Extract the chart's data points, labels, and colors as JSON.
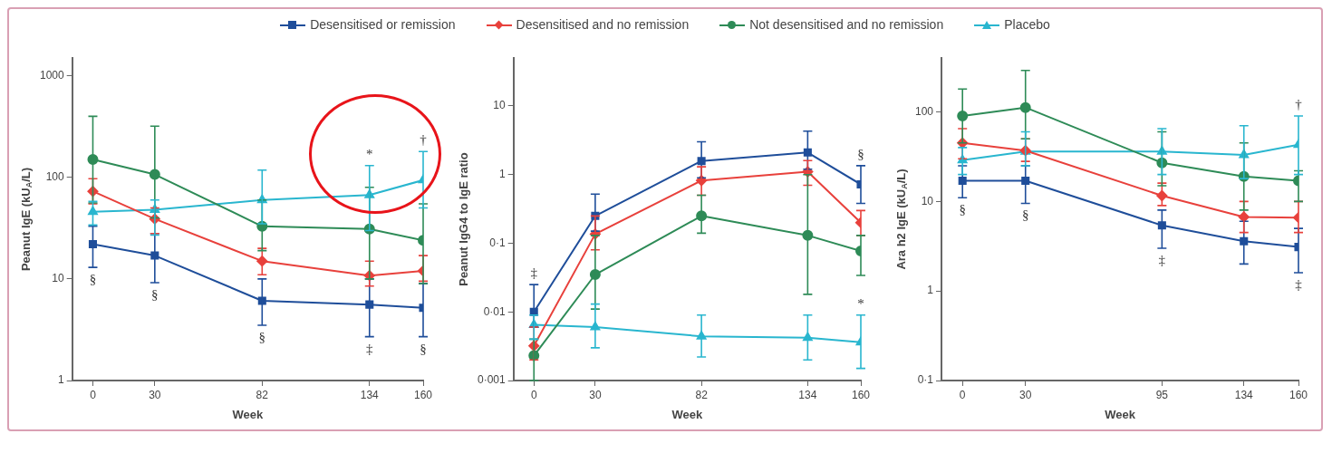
{
  "chart_data": [
    {
      "type": "line",
      "xlabel": "Week",
      "ylabel": "Peanut IgE (kU$_{A}$/L)",
      "x": [
        0,
        30,
        82,
        134,
        160
      ],
      "xlim": [
        -10,
        160
      ],
      "xticks": [
        0,
        30,
        82,
        134,
        160
      ],
      "log": "y",
      "ylim": [
        1,
        1500
      ],
      "yticks": [
        1,
        10,
        100,
        1000
      ],
      "grid": false,
      "legend": "top",
      "series": [
        {
          "name": "Desensitised or remission",
          "color": "#1f4e9a",
          "marker": "square",
          "values": [
            22,
            17,
            6.1,
            5.6,
            5.2
          ],
          "errors": [
            [
              13,
              33
            ],
            [
              9.2,
              28
            ],
            [
              3.5,
              10
            ],
            [
              2.7,
              10
            ],
            [
              2.7,
              9
            ]
          ]
        },
        {
          "name": "Desensitised and no remission",
          "color": "#e8413c",
          "marker": "diamond",
          "values": [
            73,
            39,
            15,
            10.8,
            12
          ],
          "errors": [
            [
              55,
              97
            ],
            [
              28,
              50
            ],
            [
              11,
              20
            ],
            [
              8.5,
              15
            ],
            [
              9.5,
              17
            ]
          ]
        },
        {
          "name": "Not desensitised and no remission",
          "color": "#2e8b57",
          "marker": "circle",
          "values": [
            150,
            107,
            33,
            31,
            24
          ],
          "errors": [
            [
              56,
              400
            ],
            [
              40,
              320
            ],
            [
              19,
              60
            ],
            [
              10,
              80
            ],
            [
              9,
              55
            ]
          ]
        },
        {
          "name": "Placebo",
          "color": "#29b6cf",
          "marker": "triangle",
          "values": [
            46,
            48,
            60,
            67,
            94
          ],
          "errors": [
            [
              34,
              58
            ],
            [
              27,
              60
            ],
            [
              35,
              118
            ],
            [
              30,
              131
            ],
            [
              50,
              180
            ]
          ]
        }
      ],
      "annotations": [
        {
          "text": "§",
          "x": 0,
          "y": 22
        },
        {
          "text": "§",
          "x": 30,
          "y": 17
        },
        {
          "text": "§",
          "x": 82,
          "y": 6.1
        },
        {
          "text": "‡",
          "x": 134,
          "y": 5.6
        },
        {
          "text": "§",
          "x": 160,
          "y": 5.2
        },
        {
          "text": "*",
          "x": 134,
          "y": 67
        },
        {
          "text": "†",
          "x": 160,
          "y": 94
        }
      ]
    },
    {
      "type": "line",
      "xlabel": "Week",
      "ylabel": "Peanut IgG4 to IgE ratio",
      "x": [
        0,
        30,
        82,
        134,
        160
      ],
      "xlim": [
        -10,
        160
      ],
      "xticks": [
        0,
        30,
        82,
        134,
        160
      ],
      "log": "y",
      "ylim": [
        0.001,
        50
      ],
      "yticks": [
        {
          "value": 0.001,
          "label": "0·001"
        },
        {
          "value": 0.01,
          "label": "0·01"
        },
        {
          "value": 0.1,
          "label": "0·1"
        },
        1,
        10
      ],
      "grid": false,
      "series": [
        {
          "color": "#1f4e9a",
          "marker": "square",
          "values": [
            0.01,
            0.25,
            1.58,
            2.1,
            0.72
          ],
          "errors": [
            [
              0.006,
              0.025
            ],
            [
              0.15,
              0.52
            ],
            [
              0.9,
              3
            ],
            [
              1.2,
              4.3
            ],
            [
              0.38,
              1.35
            ]
          ]
        },
        {
          "color": "#e8413c",
          "marker": "diamond",
          "values": [
            0.0032,
            0.136,
            0.82,
            1.1,
            0.2
          ],
          "errors": [
            [
              0.002,
              0.006
            ],
            [
              0.08,
              0.25
            ],
            [
              0.5,
              1.3
            ],
            [
              0.7,
              1.6
            ],
            [
              0.13,
              0.3
            ]
          ]
        },
        {
          "color": "#2e8b57",
          "marker": "circle",
          "values": [
            0.0023,
            0.035,
            0.25,
            0.13,
            0.077
          ],
          "errors": [
            [
              0.001,
              0.004
            ],
            [
              0.011,
              0.13
            ],
            [
              0.14,
              0.5
            ],
            [
              0.018,
              1
            ],
            [
              0.034,
              0.13
            ]
          ]
        },
        {
          "color": "#29b6cf",
          "marker": "triangle",
          "values": [
            0.0065,
            0.006,
            0.0044,
            0.0042,
            0.0036
          ],
          "errors": [
            [
              0.004,
              0.009
            ],
            [
              0.003,
              0.013
            ],
            [
              0.0022,
              0.009
            ],
            [
              0.002,
              0.009
            ],
            [
              0.0015,
              0.009
            ]
          ]
        }
      ],
      "annotations": [
        {
          "text": "‡",
          "x": 0,
          "y": 0.01
        },
        {
          "text": "§",
          "x": 160,
          "y": 0.72
        },
        {
          "text": "*",
          "x": 160,
          "y": 0.0036
        }
      ]
    },
    {
      "type": "line",
      "xlabel": "Week",
      "ylabel": "Ara h2 IgE (kU$_{A}$/L)",
      "x": [
        0,
        30,
        95,
        134,
        160
      ],
      "xlim": [
        -10,
        160
      ],
      "xticks": [
        0,
        30,
        95,
        134,
        160
      ],
      "log": "y",
      "ylim": [
        0.1,
        400
      ],
      "yticks": [
        {
          "value": 0.1,
          "label": "0·1"
        },
        1,
        10,
        100
      ],
      "grid": false,
      "series": [
        {
          "color": "#1f4e9a",
          "marker": "square",
          "values": [
            17,
            17,
            5.4,
            3.6,
            3.1
          ],
          "errors": [
            [
              11,
              25
            ],
            [
              9.5,
              25
            ],
            [
              3,
              8
            ],
            [
              2,
              6
            ],
            [
              1.6,
              5
            ]
          ]
        },
        {
          "color": "#e8413c",
          "marker": "diamond",
          "values": [
            45,
            37,
            11.6,
            6.7,
            6.6
          ],
          "errors": [
            [
              30,
              65
            ],
            [
              28,
              50
            ],
            [
              9,
              16
            ],
            [
              4.5,
              10
            ],
            [
              4.5,
              10
            ]
          ]
        },
        {
          "color": "#2e8b57",
          "marker": "circle",
          "values": [
            90,
            112,
            27,
            19,
            17
          ],
          "errors": [
            [
              45,
              180
            ],
            [
              50,
              290
            ],
            [
              15,
              60
            ],
            [
              8,
              45
            ],
            [
              10,
              22
            ]
          ]
        },
        {
          "color": "#29b6cf",
          "marker": "triangle",
          "values": [
            29,
            36,
            36,
            33,
            43
          ],
          "errors": [
            [
              20,
              40
            ],
            [
              25,
              60
            ],
            [
              20,
              65
            ],
            [
              18,
              70
            ],
            [
              20,
              90
            ]
          ]
        }
      ],
      "annotations": [
        {
          "text": "§",
          "x": 0,
          "y": 17
        },
        {
          "text": "§",
          "x": 30,
          "y": 17
        },
        {
          "text": "‡",
          "x": 95,
          "y": 5.4
        },
        {
          "text": "‡",
          "x": 160,
          "y": 3.1
        },
        {
          "text": "†",
          "x": 160,
          "y": 43
        }
      ]
    }
  ]
}
